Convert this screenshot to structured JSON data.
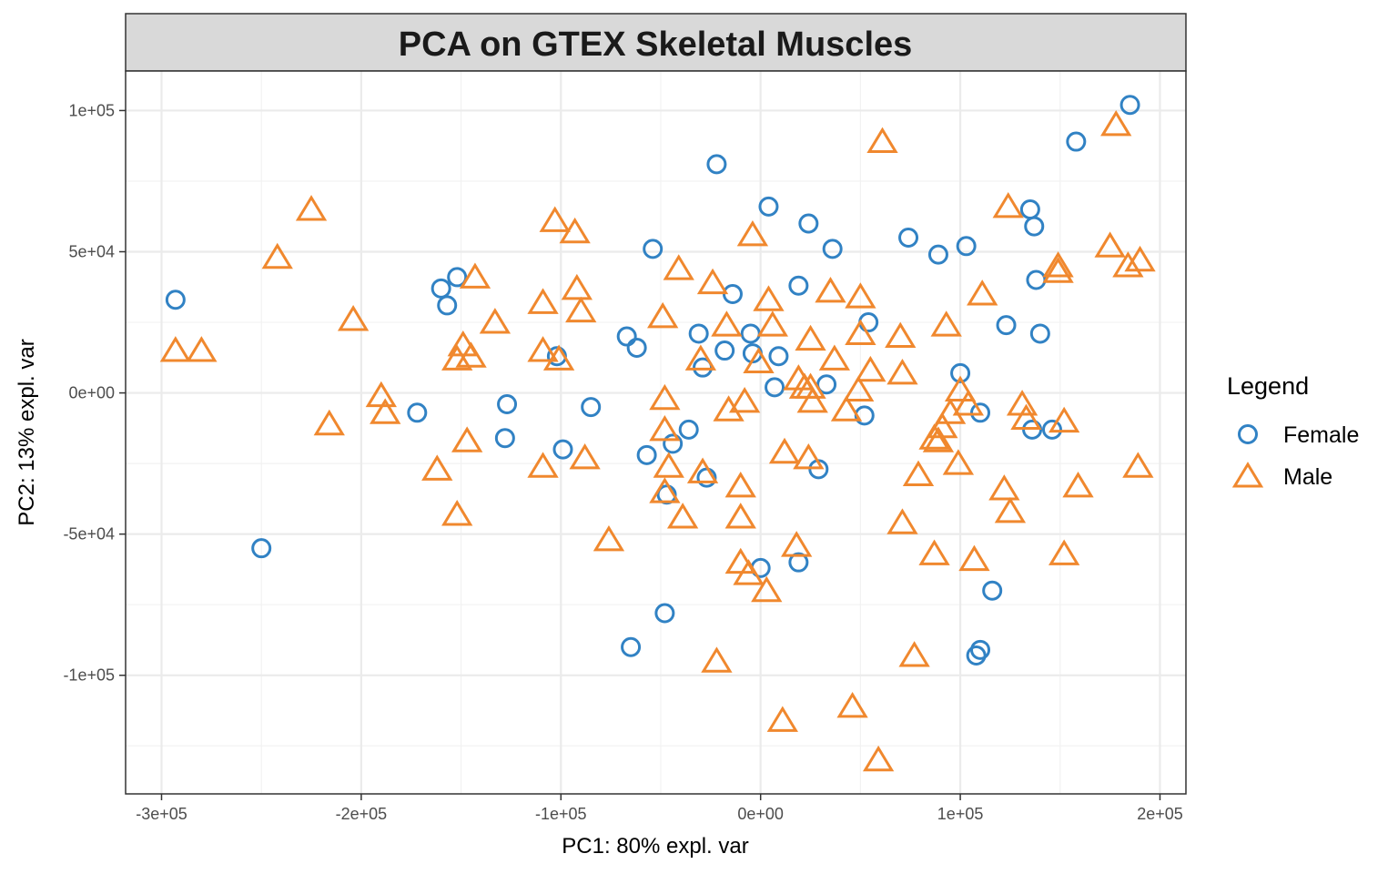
{
  "chart_data": {
    "type": "scatter",
    "title": "PCA on GTEX Skeletal Muscles",
    "xlabel": "PC1: 80% expl. var",
    "ylabel": "PC2: 13% expl. var",
    "xlim": [
      -318000,
      213000
    ],
    "ylim": [
      -142000,
      114000
    ],
    "x_ticks": [
      -300000,
      -200000,
      -100000,
      0,
      100000,
      200000
    ],
    "x_tick_labels": [
      "-3e+05",
      "-2e+05",
      "-1e+05",
      "0e+00",
      "1e+05",
      "2e+05"
    ],
    "y_ticks": [
      -100000,
      -50000,
      0,
      50000,
      100000
    ],
    "y_tick_labels": [
      "-1e+05",
      "-5e+04",
      "0e+00",
      "5e+04",
      "1e+05"
    ],
    "grid": true,
    "legend": {
      "title": "Legend",
      "position": "right"
    },
    "series": [
      {
        "name": "Female",
        "shape": "circle",
        "color": "#3182c4",
        "points": [
          [
            -293000,
            33000
          ],
          [
            -250000,
            -55000
          ],
          [
            -172000,
            -7000
          ],
          [
            -160000,
            37000
          ],
          [
            -157000,
            31000
          ],
          [
            -152000,
            41000
          ],
          [
            -127000,
            -4000
          ],
          [
            -128000,
            -16000
          ],
          [
            -102000,
            13000
          ],
          [
            -99000,
            -20000
          ],
          [
            -85000,
            -5000
          ],
          [
            -67000,
            20000
          ],
          [
            -65000,
            -90000
          ],
          [
            -62000,
            16000
          ],
          [
            -57000,
            -22000
          ],
          [
            -54000,
            51000
          ],
          [
            -48000,
            -78000
          ],
          [
            -47000,
            -36000
          ],
          [
            -44000,
            -18000
          ],
          [
            -36000,
            -13000
          ],
          [
            -31000,
            21000
          ],
          [
            -29000,
            9000
          ],
          [
            -27000,
            -30000
          ],
          [
            -22000,
            81000
          ],
          [
            -18000,
            15000
          ],
          [
            -14000,
            35000
          ],
          [
            -5000,
            21000
          ],
          [
            -4000,
            14000
          ],
          [
            0,
            -62000
          ],
          [
            4000,
            66000
          ],
          [
            7000,
            2000
          ],
          [
            9000,
            13000
          ],
          [
            19000,
            38000
          ],
          [
            19000,
            -60000
          ],
          [
            24000,
            60000
          ],
          [
            29000,
            -27000
          ],
          [
            33000,
            3000
          ],
          [
            36000,
            51000
          ],
          [
            52000,
            -8000
          ],
          [
            54000,
            25000
          ],
          [
            74000,
            55000
          ],
          [
            89000,
            49000
          ],
          [
            100000,
            7000
          ],
          [
            103000,
            52000
          ],
          [
            108000,
            -93000
          ],
          [
            110000,
            -91000
          ],
          [
            110000,
            -7000
          ],
          [
            116000,
            -70000
          ],
          [
            123000,
            24000
          ],
          [
            135000,
            65000
          ],
          [
            136000,
            -13000
          ],
          [
            137000,
            59000
          ],
          [
            138000,
            40000
          ],
          [
            140000,
            21000
          ],
          [
            146000,
            -13000
          ],
          [
            158000,
            89000
          ],
          [
            185000,
            102000
          ]
        ]
      },
      {
        "name": "Male",
        "shape": "triangle",
        "color": "#f0882e",
        "points": [
          [
            -293000,
            15000
          ],
          [
            -280000,
            15000
          ],
          [
            -242000,
            48000
          ],
          [
            -225000,
            65000
          ],
          [
            -216000,
            -11000
          ],
          [
            -204000,
            26000
          ],
          [
            -190000,
            -1000
          ],
          [
            -188000,
            -7000
          ],
          [
            -162000,
            -27000
          ],
          [
            -152000,
            -43000
          ],
          [
            -149000,
            17000
          ],
          [
            -152000,
            12000
          ],
          [
            -147000,
            -17000
          ],
          [
            -143000,
            41000
          ],
          [
            -145000,
            13000
          ],
          [
            -133000,
            25000
          ],
          [
            -109000,
            15000
          ],
          [
            -109000,
            32000
          ],
          [
            -109000,
            -26000
          ],
          [
            -103000,
            61000
          ],
          [
            -101000,
            12000
          ],
          [
            -93000,
            57000
          ],
          [
            -92000,
            37000
          ],
          [
            -90000,
            29000
          ],
          [
            -88000,
            -23000
          ],
          [
            -76000,
            -52000
          ],
          [
            -49000,
            27000
          ],
          [
            -48000,
            -2000
          ],
          [
            -48000,
            -13000
          ],
          [
            -46000,
            -26000
          ],
          [
            -48000,
            -35000
          ],
          [
            -41000,
            44000
          ],
          [
            -39000,
            -44000
          ],
          [
            -30000,
            12000
          ],
          [
            -29000,
            -28000
          ],
          [
            -24000,
            39000
          ],
          [
            -22000,
            -95000
          ],
          [
            -17000,
            24000
          ],
          [
            -16000,
            -6000
          ],
          [
            -10000,
            -33000
          ],
          [
            -10000,
            -44000
          ],
          [
            -10000,
            -60000
          ],
          [
            -8000,
            -3000
          ],
          [
            -6000,
            -64000
          ],
          [
            -4000,
            56000
          ],
          [
            -1000,
            11000
          ],
          [
            3000,
            -70000
          ],
          [
            4000,
            33000
          ],
          [
            6000,
            24000
          ],
          [
            11000,
            -116000
          ],
          [
            12000,
            -21000
          ],
          [
            18000,
            -54000
          ],
          [
            19000,
            5000
          ],
          [
            22000,
            2000
          ],
          [
            25000,
            19000
          ],
          [
            25000,
            2000
          ],
          [
            26000,
            -3000
          ],
          [
            24000,
            -23000
          ],
          [
            35000,
            36000
          ],
          [
            37000,
            12000
          ],
          [
            43000,
            -6000
          ],
          [
            46000,
            -111000
          ],
          [
            49000,
            1000
          ],
          [
            50000,
            34000
          ],
          [
            50000,
            21000
          ],
          [
            55000,
            8000
          ],
          [
            59000,
            -130000
          ],
          [
            61000,
            89000
          ],
          [
            70000,
            20000
          ],
          [
            71000,
            7000
          ],
          [
            71000,
            -46000
          ],
          [
            77000,
            -93000
          ],
          [
            79000,
            -29000
          ],
          [
            87000,
            -16000
          ],
          [
            87000,
            -57000
          ],
          [
            89000,
            -17000
          ],
          [
            91000,
            -12000
          ],
          [
            93000,
            24000
          ],
          [
            95000,
            -7000
          ],
          [
            99000,
            -25000
          ],
          [
            100000,
            1000
          ],
          [
            104000,
            -4000
          ],
          [
            107000,
            -59000
          ],
          [
            111000,
            35000
          ],
          [
            124000,
            66000
          ],
          [
            122000,
            -34000
          ],
          [
            125000,
            -42000
          ],
          [
            131000,
            -4000
          ],
          [
            133000,
            -9000
          ],
          [
            149000,
            45000
          ],
          [
            149000,
            43000
          ],
          [
            152000,
            -10000
          ],
          [
            152000,
            -57000
          ],
          [
            159000,
            -33000
          ],
          [
            175000,
            52000
          ],
          [
            178000,
            95000
          ],
          [
            184000,
            45000
          ],
          [
            190000,
            47000
          ],
          [
            189000,
            -26000
          ]
        ]
      }
    ]
  }
}
